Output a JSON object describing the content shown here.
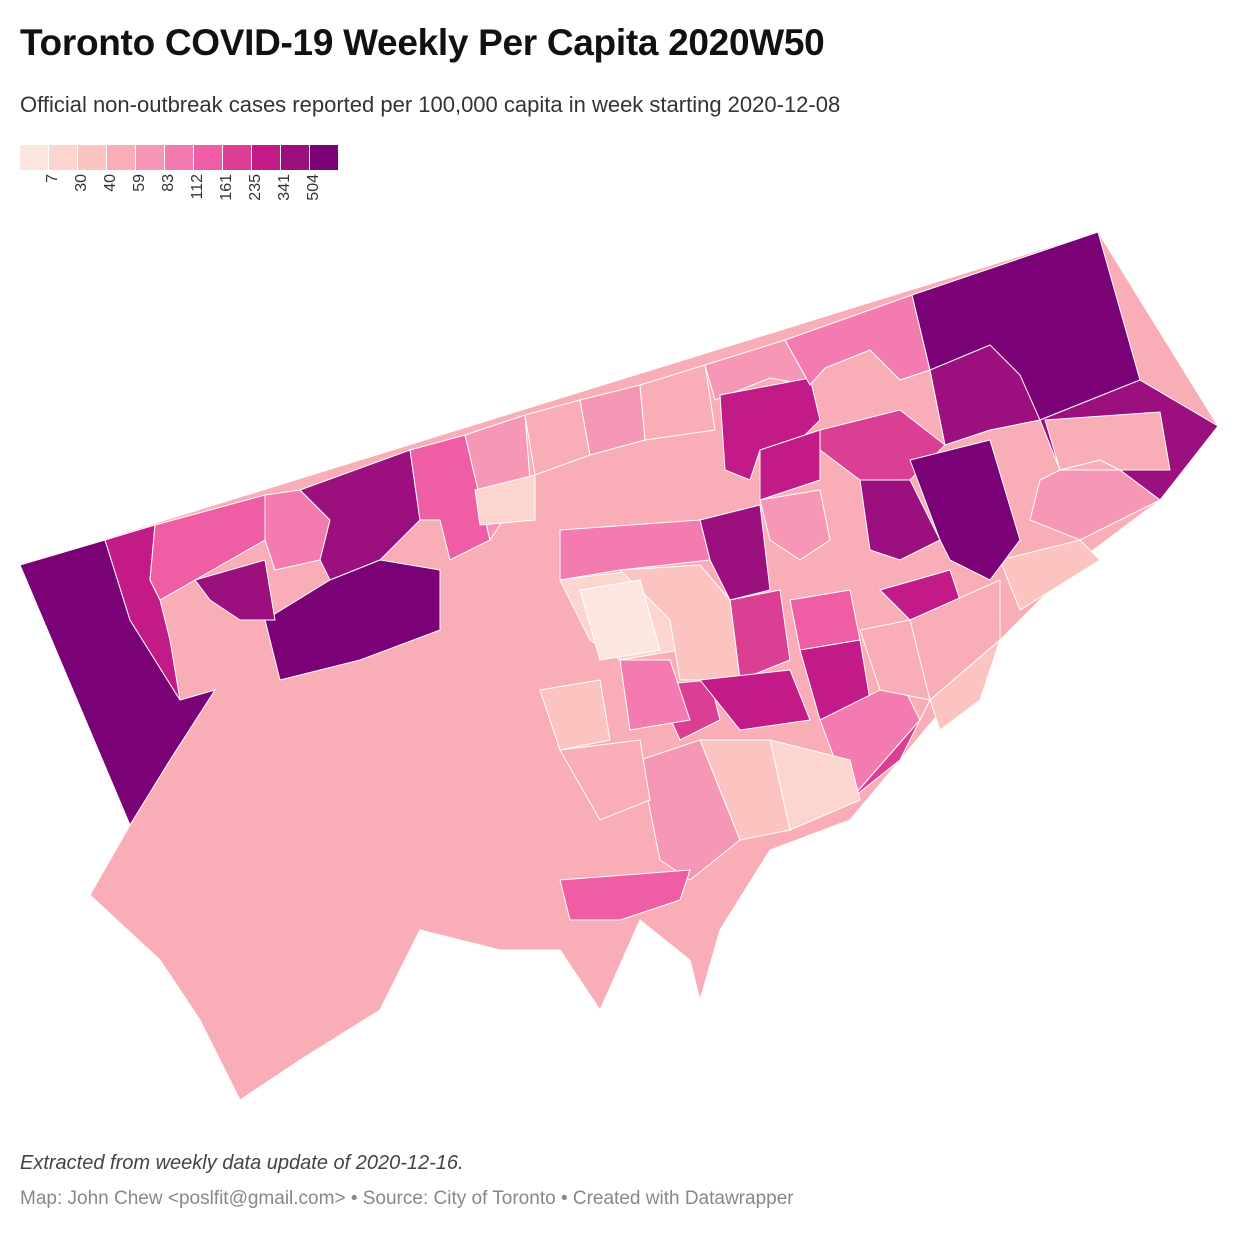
{
  "title": "Toronto COVID-19 Weekly Per Capita 2020W50",
  "subtitle": "Official non-outbreak cases reported per 100,000 capita in week starting 2020-12-08",
  "legend": {
    "colors": [
      "#fde6e0",
      "#fcd5cf",
      "#fbc4c0",
      "#f9adb7",
      "#f597b5",
      "#f47bb0",
      "#ef5ea4",
      "#db3f93",
      "#c21a87",
      "#9c0f7e",
      "#7a0176"
    ],
    "labels": [
      "7",
      "30",
      "40",
      "59",
      "83",
      "112",
      "161",
      "235",
      "341",
      "504"
    ]
  },
  "map": {
    "regions": [
      {
        "bin": 10
      },
      {
        "bin": 8
      },
      {
        "bin": 6
      },
      {
        "bin": 5
      },
      {
        "bin": 9
      },
      {
        "bin": 10
      },
      {
        "bin": 9
      },
      {
        "bin": 6
      },
      {
        "bin": 4
      },
      {
        "bin": 3
      },
      {
        "bin": 1
      },
      {
        "bin": 4
      },
      {
        "bin": 3
      },
      {
        "bin": 4
      },
      {
        "bin": 8
      },
      {
        "bin": 5
      },
      {
        "bin": 10
      },
      {
        "bin": 9
      },
      {
        "bin": 9
      },
      {
        "bin": 3
      },
      {
        "bin": 2
      },
      {
        "bin": 4
      },
      {
        "bin": 7
      },
      {
        "bin": 8
      },
      {
        "bin": 9
      },
      {
        "bin": 10
      },
      {
        "bin": 8
      },
      {
        "bin": 3
      },
      {
        "bin": 2
      },
      {
        "bin": 4
      },
      {
        "bin": 9
      },
      {
        "bin": 5
      },
      {
        "bin": 7
      },
      {
        "bin": 1
      },
      {
        "bin": 2
      },
      {
        "bin": 6
      },
      {
        "bin": 8
      },
      {
        "bin": 5
      },
      {
        "bin": 7
      },
      {
        "bin": 3
      },
      {
        "bin": 1
      },
      {
        "bin": 2
      },
      {
        "bin": 4
      },
      {
        "bin": 7
      },
      {
        "bin": 8
      },
      {
        "bin": 2
      },
      {
        "bin": 0
      },
      {
        "bin": 5
      },
      {
        "bin": 3
      },
      {
        "bin": 6
      }
    ]
  },
  "note": "Extracted from weekly data update of 2020-12-16.",
  "credits": "Map: John Chew <poslfit@gmail.com> • Source: City of Toronto • Created with Datawrapper"
}
